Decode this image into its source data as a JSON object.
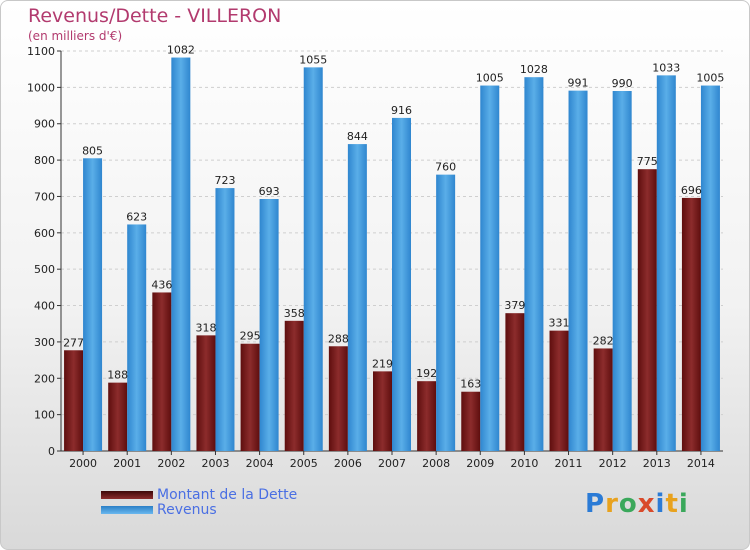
{
  "header": {
    "title": "Revenus/Dette - VILLERON",
    "subtitle": "(en milliers d'€)"
  },
  "logo": {
    "text": "Proxiti",
    "colors": [
      "#2b7bd6",
      "#e8a21e",
      "#3aa85b",
      "#d94a2b",
      "#2b7bd6",
      "#e8a21e",
      "#3aa85b"
    ]
  },
  "chart_data": {
    "type": "bar",
    "categories": [
      "2000",
      "2001",
      "2002",
      "2003",
      "2004",
      "2005",
      "2006",
      "2007",
      "2008",
      "2009",
      "2010",
      "2011",
      "2012",
      "2013",
      "2014"
    ],
    "series": [
      {
        "name": "Montant de la Dette",
        "color": "#7a1c1c",
        "values": [
          277,
          188,
          436,
          318,
          295,
          358,
          288,
          219,
          192,
          163,
          379,
          331,
          282,
          775,
          696
        ]
      },
      {
        "name": "Revenus",
        "color": "#3a96dc",
        "values": [
          805,
          623,
          1082,
          723,
          693,
          1055,
          844,
          916,
          760,
          1005,
          1028,
          991,
          990,
          1033,
          1005
        ]
      }
    ],
    "yticks": [
      0,
      100,
      200,
      300,
      400,
      500,
      600,
      700,
      800,
      900,
      1000,
      1100
    ],
    "ylim": [
      0,
      1100
    ],
    "grid": true,
    "legend": "bottom-left"
  }
}
